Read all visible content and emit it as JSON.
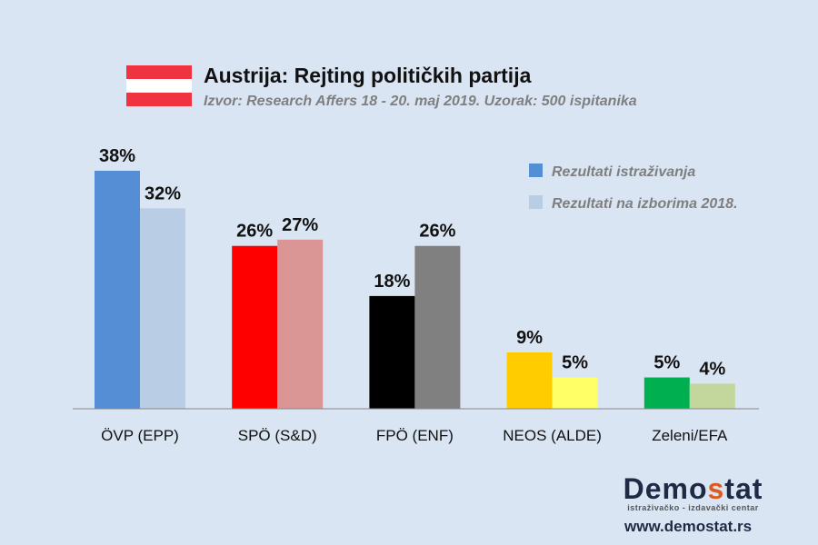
{
  "title": "Austrija: Rejting političkih partija",
  "subtitle": "Izvor: Research Affers 18 - 20. maj 2019. Uzorak: 500 ispitanika",
  "flag_colors": [
    "#ef3340",
    "#ffffff",
    "#ef3340"
  ],
  "logo": {
    "name_a": "Demo",
    "name_s": "s",
    "name_b": "tat",
    "tagline": "istraživačko - izdavački  centar",
    "url": "www.demostat.rs"
  },
  "chart_data": {
    "type": "bar",
    "title": "Austrija: Rejting političkih partija",
    "categories": [
      "ÖVP (EPP)",
      "SPÖ (S&D)",
      "FPÖ (ENF)",
      "NEOS (ALDE)",
      "Zeleni/EFA"
    ],
    "series": [
      {
        "name": "Rezultati istraživanja",
        "values": [
          38,
          26,
          18,
          9,
          5
        ],
        "colors": [
          "#558ed5",
          "#ff0000",
          "#000000",
          "#ffcc00",
          "#00b050"
        ]
      },
      {
        "name": "Rezultati na izborima 2018.",
        "values": [
          32,
          27,
          26,
          5,
          4
        ],
        "colors": [
          "#b9cde5",
          "#d99694",
          "#808080",
          "#ffff66",
          "#c3d69b"
        ]
      }
    ],
    "legend_colors": [
      "#558ed5",
      "#b9cde5"
    ],
    "legend_placement": "top-right",
    "ylim": [
      0,
      40
    ],
    "grid": false,
    "value_suffix": "%"
  }
}
